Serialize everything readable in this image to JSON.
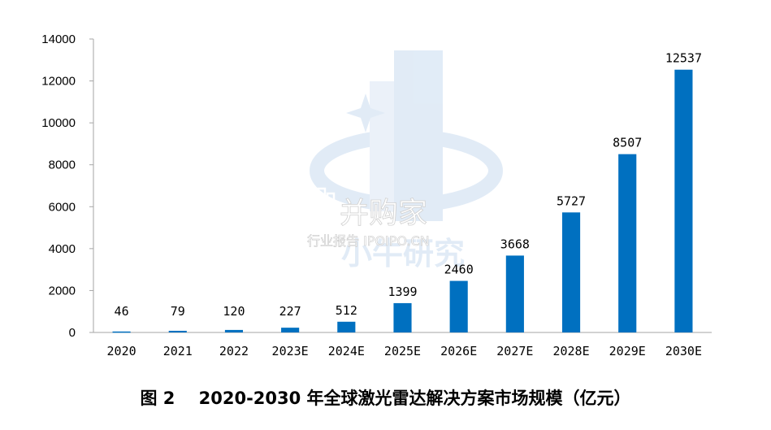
{
  "chart_data": {
    "type": "bar",
    "categories": [
      "2020",
      "2021",
      "2022",
      "2023E",
      "2024E",
      "2025E",
      "2026E",
      "2027E",
      "2028E",
      "2029E",
      "2030E"
    ],
    "values": [
      46,
      79,
      120,
      227,
      512,
      1399,
      2460,
      3668,
      5727,
      8507,
      12537
    ],
    "ylim": [
      0,
      14000
    ],
    "yticks": [
      "0",
      "2000",
      "4000",
      "6000",
      "8000",
      "10000",
      "12000",
      "14000"
    ],
    "bar_color": "#0070C0",
    "grid": false,
    "legend": "none",
    "data_labels": true
  },
  "caption": {
    "figure_no": "图 2",
    "text": "2020-2030 年全球激光雷达解决方案市场规模（亿元）"
  },
  "watermark": {
    "brand": "小牛研究",
    "name": "并购家",
    "sub": "行业报告 IPOIPO.CN"
  }
}
